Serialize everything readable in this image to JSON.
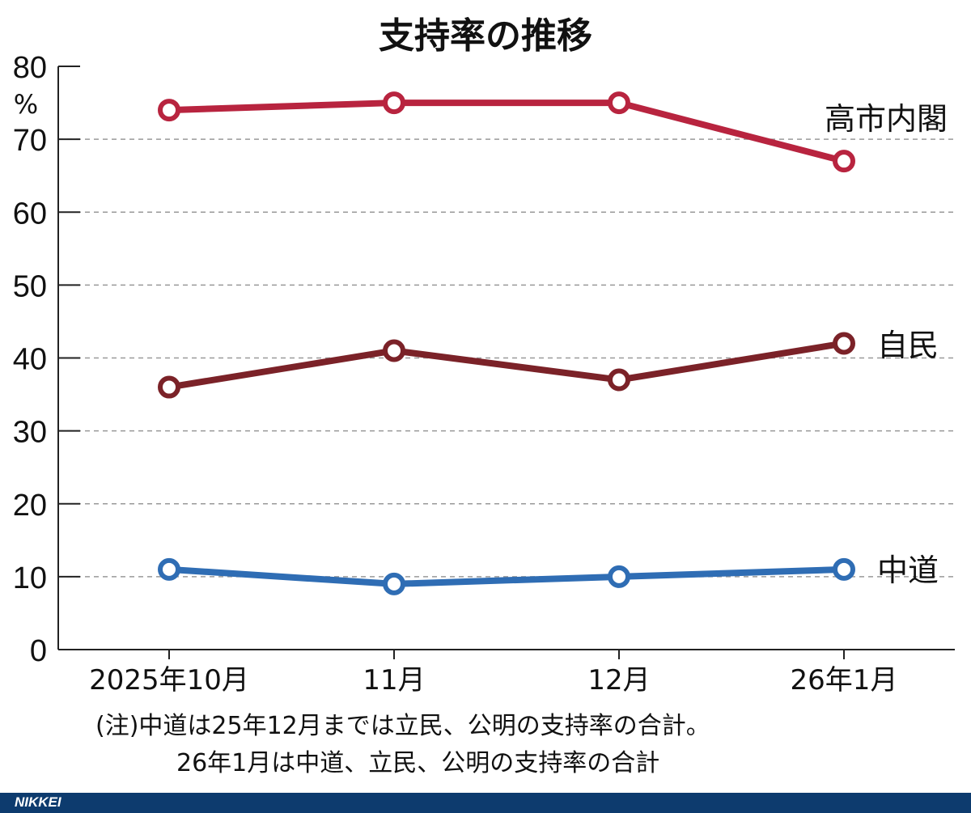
{
  "chart_data": {
    "type": "line",
    "title": "支持率の推移",
    "ylabel": "%",
    "ylim": [
      0,
      80
    ],
    "yticks": [
      0,
      10,
      20,
      30,
      40,
      50,
      60,
      70,
      80
    ],
    "grid": true,
    "categories": [
      "2025年10月",
      "11月",
      "12月",
      "26年1月"
    ],
    "series": [
      {
        "name": "高市内閣",
        "values": [
          74,
          75,
          75,
          67
        ],
        "color": "#b8243f"
      },
      {
        "name": "自民",
        "values": [
          36,
          41,
          37,
          42
        ],
        "color": "#7b2228"
      },
      {
        "name": "中道",
        "values": [
          11,
          9,
          10,
          11
        ],
        "color": "#2f6db4"
      }
    ],
    "legend": "inline-right"
  },
  "notes": [
    "(注)中道は25年12月までは立民、公明の支持率の合計。",
    "26年1月は中道、立民、公明の支持率の合計"
  ],
  "footer": {
    "logo": "NIKKEI",
    "color": "#0d3b6e"
  }
}
